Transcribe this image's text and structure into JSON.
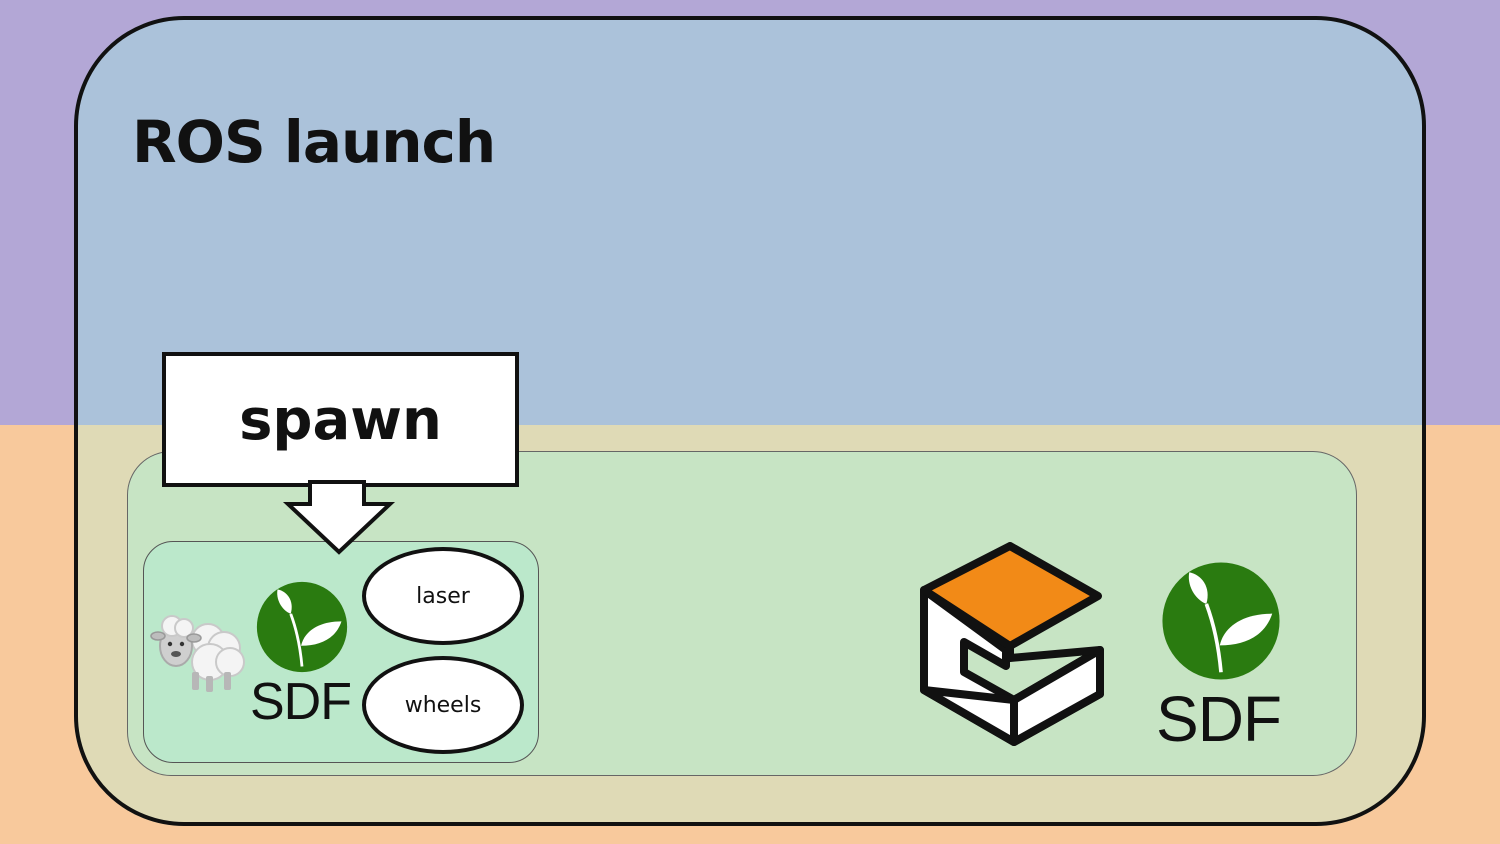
{
  "title": "ROS launch",
  "spawn": {
    "label": "spawn"
  },
  "robot": {
    "sdf_label": "SDF",
    "components": [
      "laser",
      "wheels"
    ],
    "icon": "sheep-icon"
  },
  "world": {
    "sdf_label": "SDF",
    "simulator_icon": "gazebo-logo-icon"
  },
  "colors": {
    "bg_top": "#b3a7d6",
    "bg_bottom": "#f8c99c",
    "launch_top": "#abc2da",
    "launch_bottom": "#dfdab6",
    "sim_box": "#c7e4c4",
    "robot_box": "#bbe8cb",
    "sdf_green": "#2a7b10",
    "gazebo_orange": "#f28a17"
  }
}
